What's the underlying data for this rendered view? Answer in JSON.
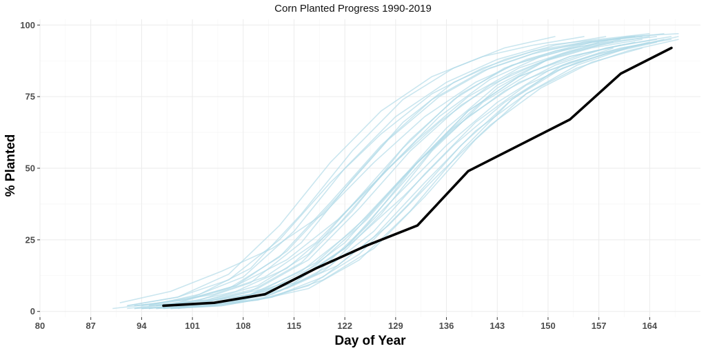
{
  "chart_data": {
    "type": "line",
    "title": "Corn Planted Progress 1990-2019",
    "xlabel": "Day of Year",
    "ylabel": "% Planted",
    "xlim": [
      80,
      171
    ],
    "ylim": [
      -2,
      102
    ],
    "x_ticks": [
      80,
      87,
      94,
      101,
      108,
      115,
      122,
      129,
      136,
      143,
      150,
      157,
      164
    ],
    "y_ticks": [
      0,
      25,
      50,
      75,
      100
    ],
    "grid": true,
    "legend": "none",
    "colors": {
      "background_series": "#add8e6",
      "highlight_series": "#000000",
      "grid_major": "#ebebeb",
      "grid_minor": "#f5f5f5"
    },
    "highlight_series": {
      "x": [
        97,
        104,
        111,
        118,
        125,
        132,
        139,
        153,
        160,
        167
      ],
      "y": [
        2,
        3,
        6,
        15,
        23,
        30,
        49,
        67,
        83,
        92
      ]
    },
    "background_series": [
      {
        "x": [
          91,
          98,
          105,
          112,
          119,
          126,
          133,
          140,
          147,
          154,
          161,
          168
        ],
        "y": [
          3,
          7,
          14,
          22,
          34,
          52,
          68,
          80,
          88,
          93,
          96,
          97
        ]
      },
      {
        "x": [
          93,
          100,
          107,
          114,
          121,
          128,
          135,
          142,
          149,
          156,
          163
        ],
        "y": [
          2,
          4,
          9,
          18,
          32,
          50,
          66,
          79,
          87,
          92,
          95
        ]
      },
      {
        "x": [
          90,
          97,
          104,
          111,
          118,
          125,
          132,
          139,
          146,
          153,
          160
        ],
        "y": [
          1,
          3,
          6,
          12,
          24,
          42,
          60,
          75,
          85,
          91,
          95
        ]
      },
      {
        "x": [
          94,
          101,
          108,
          115,
          122,
          129,
          136,
          143,
          150,
          157,
          164
        ],
        "y": [
          1,
          2,
          5,
          10,
          22,
          40,
          58,
          73,
          84,
          90,
          94
        ]
      },
      {
        "x": [
          92,
          99,
          106,
          113,
          120,
          127,
          134,
          141,
          148,
          155,
          162
        ],
        "y": [
          2,
          5,
          11,
          25,
          45,
          62,
          76,
          85,
          91,
          94,
          96
        ]
      },
      {
        "x": [
          95,
          102,
          109,
          116,
          123,
          130,
          137,
          144,
          151,
          158,
          165
        ],
        "y": [
          1,
          3,
          6,
          14,
          28,
          47,
          64,
          77,
          86,
          92,
          95
        ]
      },
      {
        "x": [
          96,
          103,
          110,
          117,
          124,
          131,
          138,
          145,
          152,
          159
        ],
        "y": [
          2,
          4,
          8,
          18,
          36,
          56,
          72,
          83,
          90,
          94
        ]
      },
      {
        "x": [
          93,
          100,
          107,
          114,
          121,
          128,
          135,
          142,
          149,
          156,
          163
        ],
        "y": [
          1,
          2,
          4,
          8,
          16,
          30,
          48,
          65,
          78,
          87,
          92
        ]
      },
      {
        "x": [
          97,
          104,
          111,
          118,
          125,
          132,
          139,
          146,
          153,
          160,
          167
        ],
        "y": [
          1,
          3,
          7,
          16,
          32,
          52,
          70,
          82,
          89,
          93,
          96
        ]
      },
      {
        "x": [
          94,
          101,
          108,
          115,
          122,
          129,
          136,
          143,
          150,
          157,
          164
        ],
        "y": [
          2,
          5,
          12,
          28,
          50,
          68,
          80,
          88,
          93,
          95,
          97
        ]
      },
      {
        "x": [
          98,
          105,
          112,
          119,
          126,
          133,
          140,
          147,
          154,
          161,
          168
        ],
        "y": [
          1,
          2,
          5,
          12,
          26,
          45,
          63,
          76,
          85,
          91,
          95
        ]
      },
      {
        "x": [
          95,
          102,
          109,
          116,
          123,
          130,
          137,
          144,
          151
        ],
        "y": [
          2,
          6,
          15,
          34,
          56,
          74,
          85,
          92,
          96
        ]
      },
      {
        "x": [
          96,
          103,
          110,
          117,
          124,
          131,
          138,
          145,
          152,
          159,
          166
        ],
        "y": [
          1,
          2,
          4,
          9,
          20,
          38,
          58,
          74,
          85,
          91,
          95
        ]
      },
      {
        "x": [
          92,
          99,
          106,
          113,
          120,
          127,
          134,
          141,
          148,
          155,
          162
        ],
        "y": [
          1,
          3,
          8,
          19,
          38,
          58,
          74,
          84,
          90,
          94,
          96
        ]
      },
      {
        "x": [
          97,
          104,
          111,
          118,
          125,
          132,
          139,
          146,
          153,
          160
        ],
        "y": [
          1,
          2,
          5,
          13,
          30,
          52,
          70,
          82,
          89,
          93
        ]
      },
      {
        "x": [
          95,
          102,
          109,
          116,
          123,
          130,
          137,
          144,
          151,
          158
        ],
        "y": [
          2,
          4,
          10,
          24,
          46,
          66,
          80,
          88,
          93,
          96
        ]
      },
      {
        "x": [
          98,
          105,
          112,
          119,
          126,
          133,
          140,
          147,
          154,
          161,
          168
        ],
        "y": [
          1,
          3,
          6,
          14,
          28,
          48,
          66,
          79,
          87,
          92,
          96
        ]
      },
      {
        "x": [
          93,
          100,
          107,
          114,
          121,
          128,
          135,
          142,
          149,
          156
        ],
        "y": [
          1,
          3,
          7,
          15,
          30,
          50,
          68,
          81,
          89,
          94
        ]
      },
      {
        "x": [
          96,
          103,
          110,
          117,
          124,
          131,
          138,
          145,
          152,
          159,
          166
        ],
        "y": [
          2,
          4,
          9,
          20,
          40,
          60,
          76,
          86,
          91,
          95,
          97
        ]
      },
      {
        "x": [
          94,
          101,
          108,
          115,
          122,
          129,
          136,
          143,
          150,
          157
        ],
        "y": [
          1,
          2,
          4,
          10,
          22,
          42,
          62,
          78,
          88,
          94
        ]
      },
      {
        "x": [
          99,
          106,
          113,
          120,
          127,
          134,
          141,
          148,
          155,
          162
        ],
        "y": [
          1,
          3,
          7,
          16,
          34,
          56,
          73,
          84,
          90,
          94
        ]
      },
      {
        "x": [
          95,
          102,
          109,
          116,
          123,
          130,
          137,
          144,
          151,
          158,
          165
        ],
        "y": [
          1,
          3,
          6,
          12,
          24,
          40,
          58,
          73,
          84,
          90,
          94
        ]
      },
      {
        "x": [
          92,
          99,
          106,
          113,
          120,
          127,
          134,
          141,
          148,
          155
        ],
        "y": [
          2,
          5,
          13,
          30,
          52,
          70,
          82,
          89,
          93,
          96
        ]
      },
      {
        "x": [
          97,
          104,
          111,
          118,
          125,
          132,
          139,
          146,
          153,
          160,
          167
        ],
        "y": [
          2,
          4,
          8,
          17,
          33,
          52,
          68,
          80,
          87,
          92,
          95
        ]
      },
      {
        "x": [
          94,
          101,
          108,
          115,
          122,
          129,
          136,
          143,
          150,
          157,
          164
        ],
        "y": [
          1,
          2,
          5,
          11,
          24,
          44,
          64,
          79,
          88,
          93,
          96
        ]
      },
      {
        "x": [
          96,
          103,
          110,
          117,
          124,
          131,
          138,
          145,
          152,
          159
        ],
        "y": [
          1,
          2,
          4,
          8,
          18,
          35,
          56,
          74,
          86,
          92
        ]
      },
      {
        "x": [
          93,
          100,
          107,
          114,
          121,
          128,
          135,
          142,
          149,
          156,
          163
        ],
        "y": [
          2,
          4,
          9,
          21,
          40,
          60,
          75,
          85,
          91,
          94,
          96
        ]
      },
      {
        "x": [
          98,
          105,
          112,
          119,
          126,
          133,
          140,
          147,
          154,
          161
        ],
        "y": [
          1,
          2,
          5,
          11,
          22,
          40,
          60,
          76,
          86,
          92
        ]
      },
      {
        "x": [
          95,
          102,
          109,
          116,
          123,
          130,
          137,
          144,
          151,
          158,
          165
        ],
        "y": [
          1,
          3,
          7,
          17,
          35,
          57,
          74,
          85,
          91,
          94,
          96
        ]
      }
    ]
  }
}
